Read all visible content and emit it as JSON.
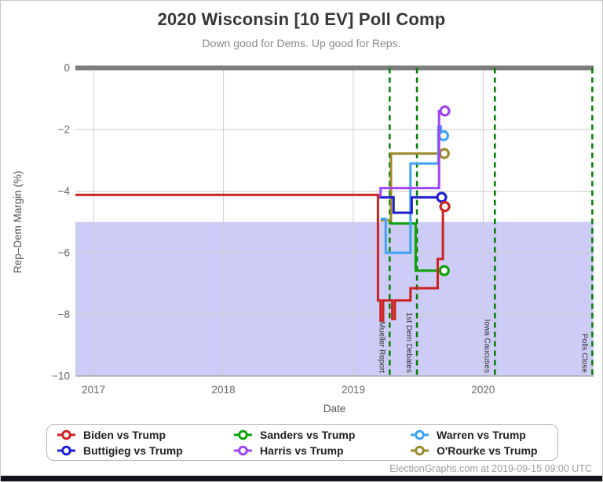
{
  "header": {
    "title": "2020 Wisconsin [10 EV] Poll Comp",
    "subtitle": "Down good for Dems. Up good for Reps."
  },
  "footer": {
    "credit": "ElectionGraphs.com at 2019-09-15 09:00 UTC"
  },
  "legend": {
    "items": [
      {
        "label": "Biden vs Trump",
        "color": "#cc2222"
      },
      {
        "label": "Sanders vs Trump",
        "color": "#0da30d"
      },
      {
        "label": "Warren vs Trump",
        "color": "#3fa2f7"
      },
      {
        "label": "Buttigieg vs Trump",
        "color": "#1f1fd1"
      },
      {
        "label": "Harris vs Trump",
        "color": "#a044f2"
      },
      {
        "label": "O'Rourke vs Trump",
        "color": "#9c8a2e"
      }
    ]
  },
  "chart_data": {
    "type": "line",
    "title": "2020 Wisconsin [10 EV] Poll Comp",
    "subtitle": "Down good for Dems. Up good for Reps.",
    "xlabel": "Date",
    "ylabel": "Rep–Dem Margin (%)",
    "x_range": [
      2016.86,
      2020.85
    ],
    "y_range": [
      0,
      -10
    ],
    "grid": true,
    "grid_color": "#cccccc",
    "x_ticks": [
      {
        "label": "2017",
        "x": 2017
      },
      {
        "label": "2018",
        "x": 2018
      },
      {
        "label": "2019",
        "x": 2019
      },
      {
        "label": "2020",
        "x": 2020
      }
    ],
    "y_ticks": [
      {
        "label": "0",
        "y": 0
      },
      {
        "label": "−2",
        "y": -2
      },
      {
        "label": "−4",
        "y": -4
      },
      {
        "label": "−6",
        "y": -6
      },
      {
        "label": "−8",
        "y": -8
      },
      {
        "label": "−10",
        "y": -10
      }
    ],
    "zero_line": {
      "y": 0,
      "color": "#7d7d7d"
    },
    "danger_band": {
      "from": -5,
      "to": -10,
      "color": "#cdccf6"
    },
    "event_line_color": "#008000",
    "events": [
      {
        "label": "Mueller Report",
        "x": 2019.28
      },
      {
        "label": "1st Dem Debates",
        "x": 2019.49
      },
      {
        "label": "Iowa Caucuses",
        "x": 2020.09
      },
      {
        "label": "Polls Close",
        "x": 2020.84
      }
    ],
    "series": [
      {
        "name": "Sanders vs Trump",
        "color": "#0da30d",
        "end_dot": true,
        "points": [
          [
            2019.29,
            -4.75
          ],
          [
            2019.29,
            -5.05
          ],
          [
            2019.48,
            -5.05
          ],
          [
            2019.48,
            -6.58
          ],
          [
            2019.7,
            -6.58
          ]
        ]
      },
      {
        "name": "O'Rourke vs Trump",
        "color": "#9c8a2e",
        "end_dot": true,
        "points": [
          [
            2019.21,
            -4.95
          ],
          [
            2019.29,
            -4.95
          ],
          [
            2019.29,
            -2.78
          ],
          [
            2019.7,
            -2.78
          ]
        ]
      },
      {
        "name": "Warren vs Trump",
        "color": "#3fa2f7",
        "end_dot": true,
        "points": [
          [
            2019.21,
            -4.9
          ],
          [
            2019.25,
            -4.9
          ],
          [
            2019.25,
            -6.0
          ],
          [
            2019.44,
            -6.0
          ],
          [
            2019.44,
            -3.1
          ],
          [
            2019.655,
            -3.1
          ],
          [
            2019.655,
            -1.9
          ],
          [
            2019.675,
            -1.9
          ],
          [
            2019.675,
            -2.2
          ],
          [
            2019.695,
            -2.2
          ]
        ]
      },
      {
        "name": "Buttigieg vs Trump",
        "color": "#1f1fd1",
        "end_dot": true,
        "points": [
          [
            2019.2,
            -4.2
          ],
          [
            2019.31,
            -4.2
          ],
          [
            2019.31,
            -4.7
          ],
          [
            2019.45,
            -4.7
          ],
          [
            2019.45,
            -4.2
          ],
          [
            2019.68,
            -4.2
          ]
        ]
      },
      {
        "name": "Harris vs Trump",
        "color": "#a044f2",
        "end_dot": true,
        "points": [
          [
            2019.18,
            -4.15
          ],
          [
            2019.21,
            -4.15
          ],
          [
            2019.21,
            -3.9
          ],
          [
            2019.66,
            -3.9
          ],
          [
            2019.66,
            -1.4
          ],
          [
            2019.705,
            -1.4
          ]
        ]
      },
      {
        "name": "Biden vs Trump",
        "color": "#cc2222",
        "end_dot": true,
        "points": [
          [
            2016.86,
            -4.12
          ],
          [
            2019.19,
            -4.12
          ],
          [
            2019.19,
            -7.55
          ],
          [
            2019.21,
            -7.55
          ],
          [
            2019.21,
            -8.2
          ],
          [
            2019.23,
            -8.2
          ],
          [
            2019.23,
            -7.55
          ],
          [
            2019.3,
            -7.55
          ],
          [
            2019.3,
            -8.15
          ],
          [
            2019.32,
            -8.15
          ],
          [
            2019.32,
            -7.55
          ],
          [
            2019.44,
            -7.55
          ],
          [
            2019.44,
            -7.15
          ],
          [
            2019.65,
            -7.15
          ],
          [
            2019.65,
            -6.2
          ],
          [
            2019.69,
            -6.2
          ],
          [
            2019.69,
            -4.5
          ],
          [
            2019.705,
            -4.5
          ]
        ]
      }
    ]
  }
}
